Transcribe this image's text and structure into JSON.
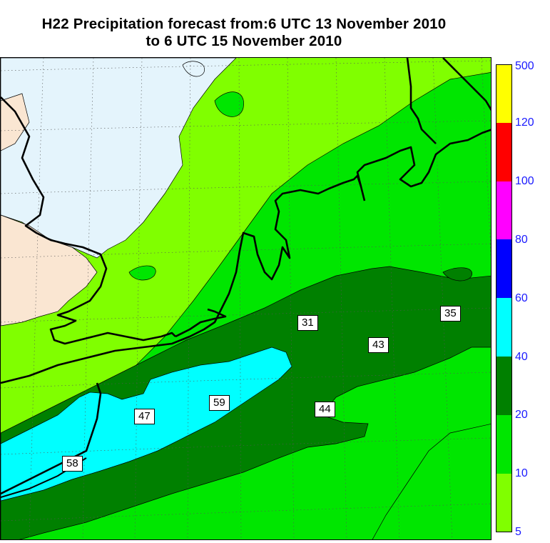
{
  "title": {
    "line1": "H22 Precipitation forecast from:6 UTC 13 November 2010",
    "line2": "to 6 UTC 15 November 2010"
  },
  "map": {
    "value_labels": [
      "31",
      "35",
      "43",
      "44",
      "47",
      "58",
      "59"
    ]
  },
  "colorbar": {
    "ticks": [
      "5",
      "10",
      "20",
      "40",
      "60",
      "80",
      "100",
      "120",
      "500"
    ],
    "colors": [
      "#80ff00",
      "#00e600",
      "#008000",
      "#00ffff",
      "#0000ff",
      "#ff00ff",
      "#ff0000",
      "#ffff00"
    ],
    "tick_color": "#1a1aff"
  },
  "colors": {
    "no_precip_sea": "#e4f4fc",
    "land": "#fae6d2",
    "band_5_10": "#80ff00",
    "band_10_20": "#00e600",
    "band_20_40": "#008000",
    "band_40_60": "#00ffff"
  }
}
